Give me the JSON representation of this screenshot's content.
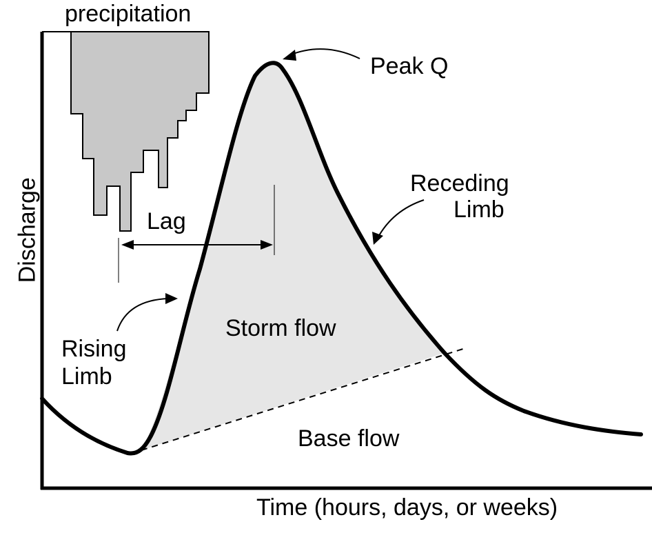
{
  "labels": {
    "precipitation": "precipitation",
    "peak": "Peak Q",
    "receding_line1": "Receding",
    "receding_line2": "Limb",
    "lag": "Lag",
    "storm_flow": "Storm flow",
    "rising_line1": "Rising",
    "rising_line2": "Limb",
    "base_flow": "Base flow",
    "x_axis": "Time (hours, days, or weeks)",
    "y_axis": "Discharge"
  },
  "colors": {
    "precipitation_fill": "#c8c8c8",
    "storm_flow_fill": "#e6e6e6",
    "ink": "#000000"
  }
}
